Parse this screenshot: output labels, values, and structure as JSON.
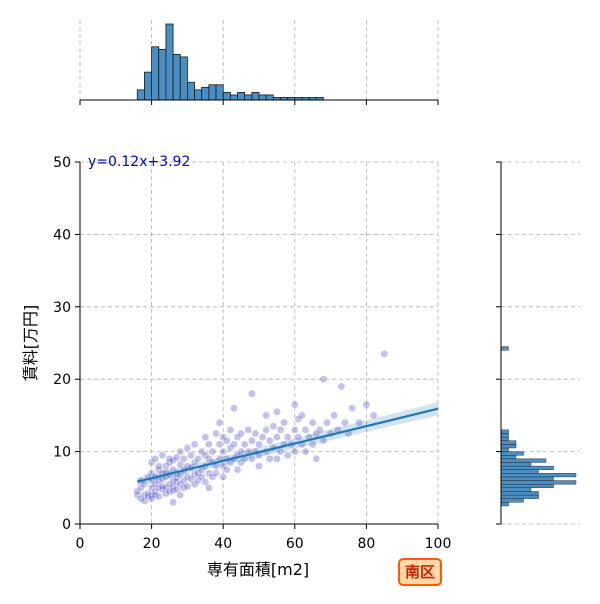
{
  "badge": "南区",
  "chart_data": {
    "type": "scatter",
    "xlabel": "専有面積[m2]",
    "ylabel": "賃料[万円]",
    "xlim": [
      0,
      100
    ],
    "ylim": [
      0,
      50
    ],
    "xticks": [
      "0",
      "20",
      "40",
      "60",
      "80",
      "100"
    ],
    "yticks": [
      "0",
      "10",
      "20",
      "30",
      "40",
      "50"
    ],
    "grid": true,
    "point_color": "#5050c8",
    "line_color": "#1f77b4",
    "hist_color": "#4a8fc4",
    "regression": {
      "slope": 0.12,
      "intercept": 3.92,
      "x_range": [
        16,
        100
      ],
      "label": "y=0.12x+3.92"
    },
    "points": [
      [
        16,
        4
      ],
      [
        16,
        4.5
      ],
      [
        17,
        3.5
      ],
      [
        17,
        5
      ],
      [
        17,
        6
      ],
      [
        18,
        4
      ],
      [
        18,
        3.2
      ],
      [
        18,
        5.5
      ],
      [
        19,
        4.2
      ],
      [
        19,
        6.5
      ],
      [
        19,
        3.8
      ],
      [
        20,
        4
      ],
      [
        20,
        5
      ],
      [
        20,
        7
      ],
      [
        20,
        8.5
      ],
      [
        20,
        3.5
      ],
      [
        20,
        6
      ],
      [
        21,
        4.5
      ],
      [
        21,
        5.5
      ],
      [
        21,
        6.5
      ],
      [
        21,
        9
      ],
      [
        21,
        4
      ],
      [
        22,
        5
      ],
      [
        22,
        6
      ],
      [
        22,
        7.5
      ],
      [
        22,
        3.8
      ],
      [
        22,
        8
      ],
      [
        23,
        4.8
      ],
      [
        23,
        6.2
      ],
      [
        23,
        7
      ],
      [
        23,
        9.5
      ],
      [
        23,
        5.2
      ],
      [
        24,
        5
      ],
      [
        24,
        6.5
      ],
      [
        24,
        8
      ],
      [
        24,
        4.2
      ],
      [
        24,
        7.2
      ],
      [
        25,
        5.5
      ],
      [
        25,
        6.8
      ],
      [
        25,
        8.5
      ],
      [
        25,
        4.5
      ],
      [
        25,
        9
      ],
      [
        26,
        5.2
      ],
      [
        26,
        6
      ],
      [
        26,
        7.5
      ],
      [
        26,
        3
      ],
      [
        26,
        8.8
      ],
      [
        26,
        4.6
      ],
      [
        27,
        5.8
      ],
      [
        27,
        7
      ],
      [
        27,
        9.2
      ],
      [
        27,
        4.8
      ],
      [
        27,
        6.4
      ],
      [
        28,
        5.5
      ],
      [
        28,
        6.8
      ],
      [
        28,
        8.2
      ],
      [
        28,
        10
      ],
      [
        28,
        4
      ],
      [
        29,
        6
      ],
      [
        29,
        7.4
      ],
      [
        29,
        5
      ],
      [
        29,
        9
      ],
      [
        30,
        6.5
      ],
      [
        30,
        8
      ],
      [
        30,
        5.2
      ],
      [
        30,
        10.5
      ],
      [
        31,
        6.2
      ],
      [
        31,
        7.8
      ],
      [
        31,
        9.5
      ],
      [
        32,
        6.8
      ],
      [
        32,
        8.5
      ],
      [
        32,
        5.5
      ],
      [
        32,
        11
      ],
      [
        33,
        7
      ],
      [
        33,
        9
      ],
      [
        33,
        6
      ],
      [
        34,
        7.5
      ],
      [
        34,
        10
      ],
      [
        34,
        6.5
      ],
      [
        35,
        8
      ],
      [
        35,
        9.5
      ],
      [
        35,
        5.8
      ],
      [
        35,
        12
      ],
      [
        36,
        7
      ],
      [
        36,
        9
      ],
      [
        36,
        11
      ],
      [
        36,
        5
      ],
      [
        37,
        8.5
      ],
      [
        37,
        10
      ],
      [
        37,
        6.5
      ],
      [
        38,
        8
      ],
      [
        38,
        12.5
      ],
      [
        38,
        7
      ],
      [
        39,
        9
      ],
      [
        39,
        11
      ],
      [
        39,
        14
      ],
      [
        40,
        8
      ],
      [
        40,
        10
      ],
      [
        40,
        12
      ],
      [
        40,
        6.5
      ],
      [
        41,
        9
      ],
      [
        41,
        11.5
      ],
      [
        41,
        7.5
      ],
      [
        42,
        10.5
      ],
      [
        42,
        8.5
      ],
      [
        42,
        13
      ],
      [
        43,
        9
      ],
      [
        43,
        11
      ],
      [
        43,
        16
      ],
      [
        44,
        9.5
      ],
      [
        44,
        12
      ],
      [
        44,
        7.5
      ],
      [
        45,
        10
      ],
      [
        45,
        12.5
      ],
      [
        45,
        8.5
      ],
      [
        46,
        11
      ],
      [
        46,
        9
      ],
      [
        47,
        10
      ],
      [
        47,
        13
      ],
      [
        48,
        9
      ],
      [
        48,
        11.5
      ],
      [
        48,
        18
      ],
      [
        49,
        10
      ],
      [
        49,
        12.5
      ],
      [
        50,
        9.5
      ],
      [
        50,
        11
      ],
      [
        50,
        8
      ],
      [
        51,
        12
      ],
      [
        52,
        10
      ],
      [
        52,
        13
      ],
      [
        52,
        15
      ],
      [
        53,
        9
      ],
      [
        53,
        11.5
      ],
      [
        54,
        10.5
      ],
      [
        54,
        13.5
      ],
      [
        55,
        9
      ],
      [
        55,
        12
      ],
      [
        55,
        15.5
      ],
      [
        56,
        10
      ],
      [
        56,
        13
      ],
      [
        57,
        11
      ],
      [
        57,
        14
      ],
      [
        58,
        9.5
      ],
      [
        58,
        12
      ],
      [
        59,
        11
      ],
      [
        60,
        10
      ],
      [
        60,
        13
      ],
      [
        60,
        16.5
      ],
      [
        61,
        12
      ],
      [
        61,
        14.5
      ],
      [
        62,
        11
      ],
      [
        62,
        15
      ],
      [
        63,
        10
      ],
      [
        63,
        13
      ],
      [
        64,
        12
      ],
      [
        65,
        11
      ],
      [
        65,
        14
      ],
      [
        66,
        12.5
      ],
      [
        66,
        9
      ],
      [
        67,
        13
      ],
      [
        68,
        20
      ],
      [
        68,
        11.5
      ],
      [
        69,
        14
      ],
      [
        70,
        12.5
      ],
      [
        71,
        15
      ],
      [
        72,
        13
      ],
      [
        73,
        19
      ],
      [
        74,
        14
      ],
      [
        75,
        12.5
      ],
      [
        76,
        16
      ],
      [
        78,
        14
      ],
      [
        80,
        16.5
      ],
      [
        82,
        15
      ],
      [
        85,
        23.5
      ]
    ],
    "marginal_x": {
      "bins_start": 16,
      "bin_width": 2,
      "counts": [
        4,
        11,
        21,
        20,
        30,
        18,
        17,
        7,
        4,
        5,
        6,
        6,
        3,
        2,
        3,
        2,
        3,
        2,
        2,
        1,
        1,
        1,
        1,
        1,
        1,
        1,
        0,
        0,
        0,
        0
      ]
    },
    "marginal_y": {
      "bins_start": 2.5,
      "bin_width": 0.5,
      "counts": [
        1,
        3,
        5,
        5,
        4,
        7,
        10,
        7,
        10,
        5,
        7,
        4,
        6,
        2,
        3,
        1,
        2,
        2,
        1,
        1,
        1,
        0,
        0,
        0,
        0,
        0,
        0,
        0,
        0,
        0,
        0,
        0,
        0,
        0,
        0,
        0,
        0,
        0,
        0,
        0,
        0,
        0,
        0,
        1
      ]
    }
  }
}
